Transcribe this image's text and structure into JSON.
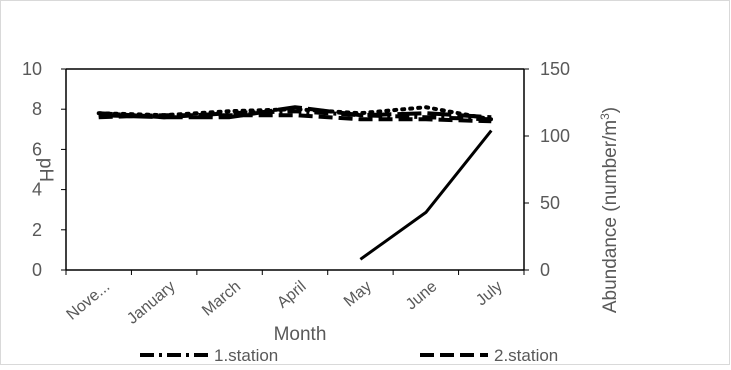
{
  "chart_data": {
    "type": "line",
    "title": "",
    "xlabel": "Month",
    "ylabel_left": "pH",
    "ylabel_right": "Abundance (number/m",
    "ylabel_right_sup": "3",
    "ylabel_right_close": ")",
    "categories": [
      "Nove...",
      "January",
      "March",
      "April",
      "May",
      "June",
      "July"
    ],
    "ylim_left": [
      0,
      10
    ],
    "ylim_right": [
      0,
      150
    ],
    "yticks_left": [
      0,
      2,
      4,
      6,
      8,
      10
    ],
    "yticks_right": [
      0,
      50,
      100,
      150
    ],
    "grid": false,
    "legend_position": "bottom",
    "series": [
      {
        "name": "1.station",
        "axis": "left",
        "style": "dash-dot",
        "values": [
          7.8,
          7.6,
          7.8,
          7.9,
          7.7,
          7.6,
          7.5
        ]
      },
      {
        "name": "2.station",
        "axis": "left",
        "style": "dash",
        "values": [
          7.6,
          7.7,
          7.7,
          7.7,
          7.5,
          7.5,
          7.4
        ]
      },
      {
        "name": "",
        "axis": "left",
        "style": "round-dot",
        "values": [
          7.8,
          7.7,
          7.9,
          8.0,
          7.8,
          8.1,
          7.5
        ]
      },
      {
        "name": "",
        "axis": "left",
        "style": "long-dash",
        "values": [
          7.7,
          7.6,
          7.6,
          8.1,
          7.7,
          7.8,
          7.6
        ]
      },
      {
        "name": "",
        "axis": "right",
        "style": "solid",
        "values": [
          null,
          null,
          null,
          null,
          8,
          43,
          104
        ]
      }
    ]
  }
}
